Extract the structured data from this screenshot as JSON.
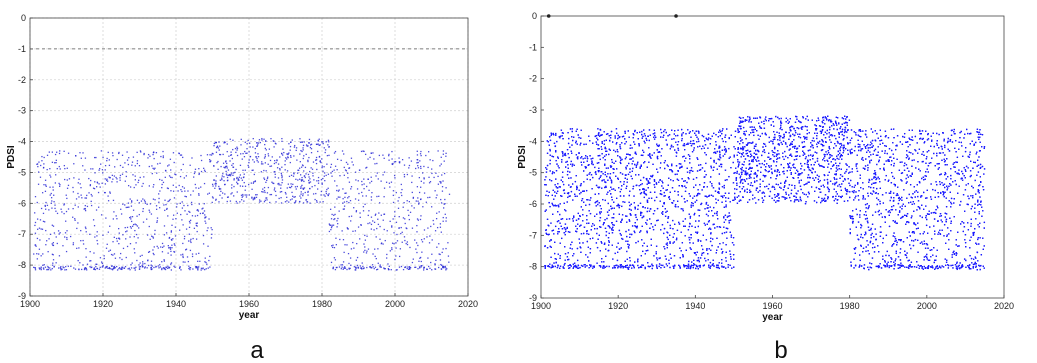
{
  "chart_data": [
    {
      "type": "scatter",
      "panel_label": "a",
      "xlabel": "year",
      "ylabel": "PDSI",
      "xlim": [
        1900,
        2020
      ],
      "ylim": [
        -9,
        0
      ],
      "xticks": [
        1900,
        1920,
        1940,
        1960,
        1980,
        2000,
        2020
      ],
      "yticks": [
        0,
        -1,
        -2,
        -3,
        -4,
        -5,
        -6,
        -7,
        -8,
        -9
      ],
      "grid": true,
      "marker_color": "#2b2bd6",
      "density": "sparse",
      "x_range": [
        1901,
        2015
      ],
      "y_range": [
        -8.2,
        -3.8
      ],
      "reference_line_y": -1,
      "floor_value": -8.1,
      "floor_segments": [
        [
          1900,
          1949
        ],
        [
          1983,
          2015
        ]
      ],
      "regimes": [
        {
          "x": [
            1900,
            1950
          ],
          "y": [
            -8.1,
            -4.3
          ]
        },
        {
          "x": [
            1950,
            1982
          ],
          "y": [
            -6.0,
            -3.9
          ]
        },
        {
          "x": [
            1982,
            2015
          ],
          "y": [
            -8.1,
            -4.3
          ]
        }
      ]
    },
    {
      "type": "scatter",
      "panel_label": "b",
      "xlabel": "year",
      "ylabel": "PDSI",
      "xlim": [
        1900,
        2020
      ],
      "ylim": [
        -9,
        0
      ],
      "xticks": [
        1900,
        1920,
        1940,
        1960,
        1980,
        2000,
        2020
      ],
      "yticks": [
        0,
        -1,
        -2,
        -3,
        -4,
        -5,
        -6,
        -7,
        -8,
        -9
      ],
      "grid": false,
      "marker_color": "#1a1aff",
      "density": "dense",
      "x_range": [
        1901,
        2015
      ],
      "y_range": [
        -8.1,
        -3.2
      ],
      "outliers": [
        {
          "x": 1902,
          "y": 0
        },
        {
          "x": 1935,
          "y": 0
        }
      ],
      "floor_value": -8.0,
      "regimes": [
        {
          "x": [
            1900,
            1950
          ],
          "y": [
            -8.1,
            -3.6
          ]
        },
        {
          "x": [
            1950,
            1980
          ],
          "y": [
            -6.0,
            -3.2
          ]
        },
        {
          "x": [
            1980,
            2015
          ],
          "y": [
            -8.1,
            -3.6
          ]
        }
      ]
    }
  ]
}
